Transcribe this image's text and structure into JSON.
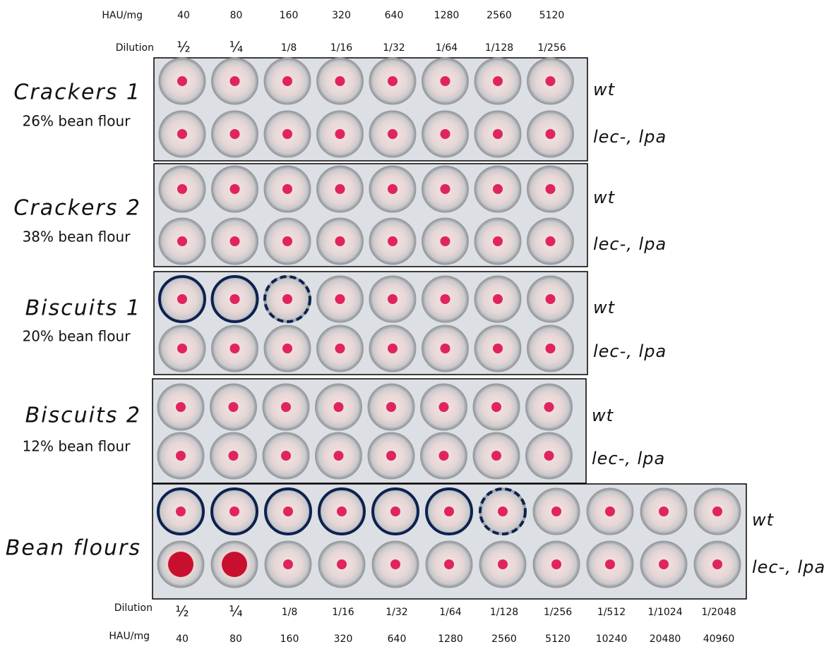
{
  "header_top": {
    "hau_label": "HAU/mg",
    "hau": [
      40,
      80,
      160,
      320,
      640,
      1280,
      2560,
      5120
    ],
    "dilution_label": "Dilution",
    "dilutions": [
      "½",
      "¼",
      "1/8",
      "1/16",
      "1/32",
      "1/64",
      "1/128",
      "1/256"
    ]
  },
  "panels": [
    {
      "title": "Crackers 1",
      "subtitle": "26% bean flour",
      "rows": [
        "wt",
        "lec-, lpa"
      ]
    },
    {
      "title": "Crackers 2",
      "subtitle": "38% bean flour",
      "rows": [
        "wt",
        "lec-, lpa"
      ]
    },
    {
      "title": "Biscuits 1",
      "subtitle": "20% bean flour",
      "rows": [
        "wt",
        "lec-, lpa"
      ]
    },
    {
      "title": "Biscuits 2",
      "subtitle": "12% bean flour",
      "rows": [
        "wt",
        "lec-, lpa"
      ]
    },
    {
      "title": "Bean flours",
      "rows": [
        "wt",
        "lec-, lpa"
      ]
    }
  ],
  "footer": {
    "dilution_label": "Dilution",
    "dilutions": [
      "½",
      "¼",
      "1/8",
      "1/16",
      "1/32",
      "1/64",
      "1/128",
      "1/256",
      "1/512",
      "1/1024",
      "1/2048"
    ],
    "hau_label": "HAU/mg",
    "hau": [
      40,
      80,
      160,
      320,
      640,
      1280,
      2560,
      5120,
      10240,
      20480,
      40960
    ]
  }
}
